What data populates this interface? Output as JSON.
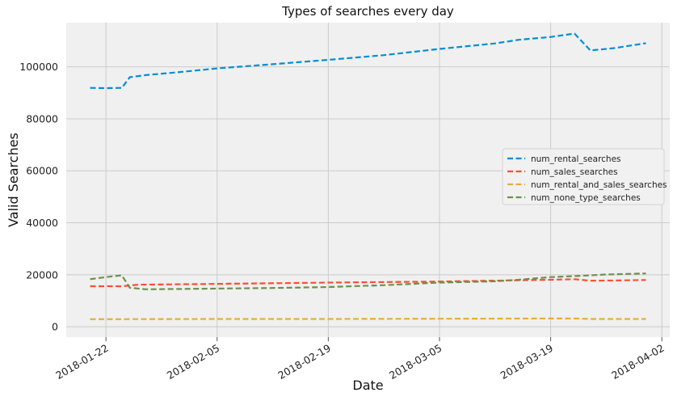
{
  "chart_data": {
    "type": "line",
    "title": "Types of searches every day",
    "xlabel": "Date",
    "ylabel": "Valid Searches",
    "xlim": [
      "2018-01-17",
      "2018-04-03"
    ],
    "ylim": [
      -4000,
      117000
    ],
    "x_ticks": [
      "2018-01-22",
      "2018-02-05",
      "2018-02-19",
      "2018-03-05",
      "2018-03-19",
      "2018-04-02"
    ],
    "y_ticks": [
      0,
      20000,
      40000,
      60000,
      80000,
      100000
    ],
    "y_tick_labels": [
      "0",
      "20000",
      "40000",
      "60000",
      "80000",
      "100000"
    ],
    "grid": true,
    "legend_position": "right",
    "line_style": "dashed",
    "series": [
      {
        "name": "num_rental_searches",
        "color": "#008fd5",
        "points": [
          [
            "2018-01-20",
            91900
          ],
          [
            "2018-01-22",
            91800
          ],
          [
            "2018-01-24",
            91900
          ],
          [
            "2018-01-25",
            96000
          ],
          [
            "2018-01-27",
            96800
          ],
          [
            "2018-01-31",
            97900
          ],
          [
            "2018-02-05",
            99400
          ],
          [
            "2018-02-12",
            101000
          ],
          [
            "2018-02-19",
            102700
          ],
          [
            "2018-02-26",
            104500
          ],
          [
            "2018-03-05",
            106900
          ],
          [
            "2018-03-12",
            109000
          ],
          [
            "2018-03-15",
            110400
          ],
          [
            "2018-03-19",
            111500
          ],
          [
            "2018-03-22",
            112800
          ],
          [
            "2018-03-24",
            106300
          ],
          [
            "2018-03-27",
            107200
          ],
          [
            "2018-03-31",
            109100
          ]
        ]
      },
      {
        "name": "num_sales_searches",
        "color": "#fc4f30",
        "points": [
          [
            "2018-01-20",
            15600
          ],
          [
            "2018-01-24",
            15600
          ],
          [
            "2018-01-26",
            16200
          ],
          [
            "2018-02-05",
            16500
          ],
          [
            "2018-02-19",
            17000
          ],
          [
            "2018-03-05",
            17400
          ],
          [
            "2018-03-19",
            18100
          ],
          [
            "2018-03-22",
            18300
          ],
          [
            "2018-03-24",
            17700
          ],
          [
            "2018-03-27",
            17800
          ],
          [
            "2018-03-31",
            18000
          ]
        ]
      },
      {
        "name": "num_rental_and_sales_searches",
        "color": "#e5ae38",
        "points": [
          [
            "2018-01-20",
            2900
          ],
          [
            "2018-02-05",
            3000
          ],
          [
            "2018-02-19",
            3000
          ],
          [
            "2018-03-05",
            3100
          ],
          [
            "2018-03-19",
            3200
          ],
          [
            "2018-03-22",
            3200
          ],
          [
            "2018-03-24",
            3000
          ],
          [
            "2018-03-31",
            3000
          ]
        ]
      },
      {
        "name": "num_none_type_searches",
        "color": "#6d904f",
        "points": [
          [
            "2018-01-20",
            18300
          ],
          [
            "2018-01-22",
            19100
          ],
          [
            "2018-01-24",
            19800
          ],
          [
            "2018-01-25",
            15000
          ],
          [
            "2018-01-27",
            14400
          ],
          [
            "2018-02-05",
            14700
          ],
          [
            "2018-02-12",
            14900
          ],
          [
            "2018-02-19",
            15300
          ],
          [
            "2018-02-26",
            16000
          ],
          [
            "2018-03-05",
            17000
          ],
          [
            "2018-03-12",
            17500
          ],
          [
            "2018-03-15",
            18100
          ],
          [
            "2018-03-19",
            19100
          ],
          [
            "2018-03-22",
            19500
          ],
          [
            "2018-03-26",
            20100
          ],
          [
            "2018-03-31",
            20500
          ]
        ]
      }
    ]
  }
}
